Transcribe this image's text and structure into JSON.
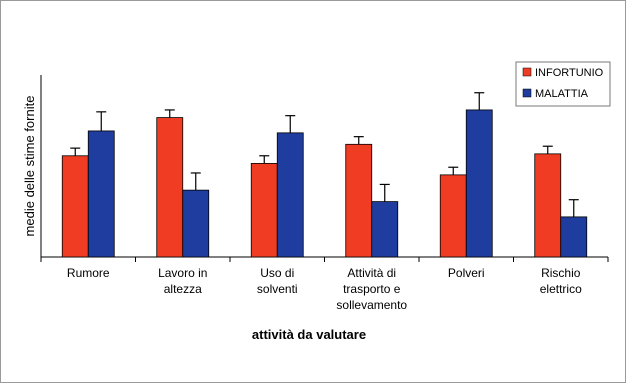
{
  "chart_data": {
    "type": "bar",
    "xlabel": "attività da valutare",
    "ylabel": "medie delle stime fornite",
    "ylim": [
      0,
      100
    ],
    "y_ticks_shown": false,
    "grid": false,
    "legend_position": "top-right",
    "categories": [
      [
        "Rumore"
      ],
      [
        "Lavoro in",
        "altezza"
      ],
      [
        "Uso di",
        "solventi"
      ],
      [
        "Attività di",
        "trasporto e",
        "sollevamento"
      ],
      [
        "Polveri"
      ],
      [
        "Rischio",
        "elettrico"
      ]
    ],
    "series": [
      {
        "name": "INFORTUNIO",
        "color": "#f03c23",
        "values": [
          53,
          73,
          49,
          59,
          43,
          54
        ],
        "error_upper": [
          4,
          4,
          4,
          4,
          4,
          4
        ]
      },
      {
        "name": "MALATTIA",
        "color": "#1f3d9e",
        "values": [
          66,
          35,
          65,
          29,
          77,
          21
        ],
        "error_upper": [
          10,
          9,
          9,
          9,
          9,
          9
        ]
      }
    ]
  }
}
